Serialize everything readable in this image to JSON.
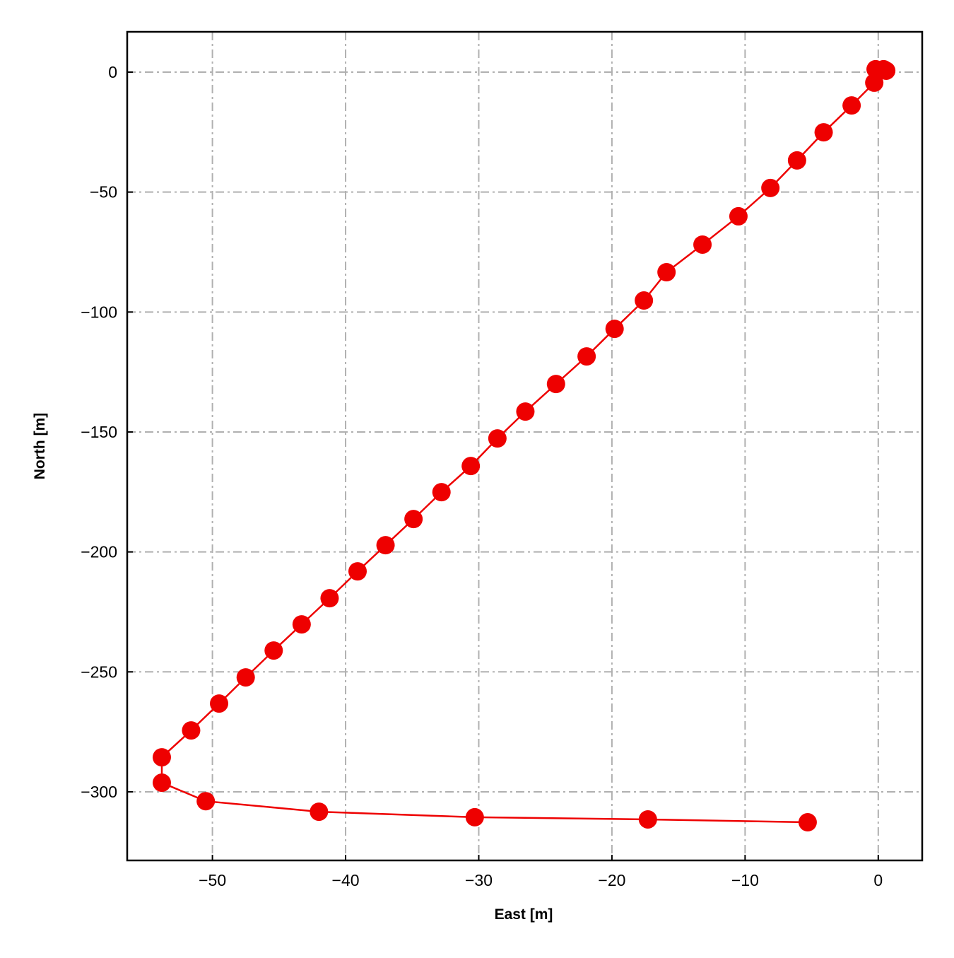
{
  "chart_data": {
    "type": "line",
    "xlabel": "East [m]",
    "ylabel": "North [m]",
    "series": [
      {
        "color": "#ee0000",
        "x": [
          0.6,
          0.4,
          -0.2,
          -0.3,
          -2.0,
          -4.1,
          -6.1,
          -8.1,
          -10.5,
          -13.2,
          -15.9,
          -17.6,
          -19.8,
          -21.9,
          -24.2,
          -26.5,
          -28.6,
          -30.6,
          -32.8,
          -34.9,
          -37.0,
          -39.1,
          -41.2,
          -43.3,
          -45.4,
          -47.5,
          -49.5,
          -51.6,
          -53.8,
          -53.8,
          -50.5,
          -42.0,
          -30.3,
          -17.3,
          -5.3
        ],
        "values": [
          0.6,
          1.2,
          1.2,
          -4.4,
          -13.9,
          -25.1,
          -36.8,
          -48.3,
          -60.1,
          -71.9,
          -83.4,
          -95.2,
          -107.0,
          -118.5,
          -130.0,
          -141.5,
          -152.7,
          -164.2,
          -175.1,
          -186.3,
          -197.2,
          -208.1,
          -219.3,
          -230.2,
          -241.1,
          -252.3,
          -263.2,
          -274.4,
          -285.6,
          -296.2,
          -303.9,
          -308.3,
          -310.6,
          -311.5,
          -312.7
        ]
      }
    ],
    "xlim": [
      -56.4,
      3.3
    ],
    "ylim": [
      -328.6,
      16.8
    ],
    "xticks": [
      {
        "value": -50,
        "label": "−50"
      },
      {
        "value": -40,
        "label": "−40"
      },
      {
        "value": -30,
        "label": "−30"
      },
      {
        "value": -20,
        "label": "−20"
      },
      {
        "value": -10,
        "label": "−10"
      },
      0
    ],
    "yticks": [
      0,
      {
        "value": -50,
        "label": "−50"
      },
      {
        "value": -100,
        "label": "−100"
      },
      {
        "value": -150,
        "label": "−150"
      },
      {
        "value": -200,
        "label": "−200"
      },
      {
        "value": -250,
        "label": "−250"
      },
      {
        "value": -300,
        "label": "−300"
      }
    ],
    "grid": true
  }
}
